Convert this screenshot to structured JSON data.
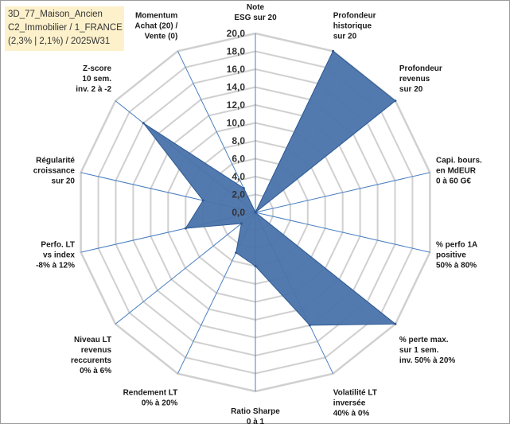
{
  "info_box": {
    "line1": "3D_77_Maison_Ancien",
    "line2": "C2_Immobilier / 1_FRANCE",
    "line3": "(2,3% | 2,1%) / 2025W31"
  },
  "colors": {
    "fill": "#4a73aa",
    "stroke": "#2e5a93",
    "grid": "#d0d0d0",
    "spoke": "#4a7fc1",
    "info_bg": "#fdf1cc"
  },
  "chart_data": {
    "type": "radar",
    "rmin": 0,
    "rmax": 20,
    "tick_step": 2,
    "tick_labels": [
      "0,0",
      "2,0",
      "4,0",
      "6,0",
      "8,0",
      "10,0",
      "12,0",
      "14,0",
      "16,0",
      "18,0",
      "20,0"
    ],
    "axes": [
      [
        "Note",
        "ESG sur 20"
      ],
      [
        "Profondeur",
        "historique",
        "sur 20"
      ],
      [
        "Profondeur",
        "revenus",
        "sur 20"
      ],
      [
        "Capi. bours.",
        "en MdEUR",
        "0 à 60 G€"
      ],
      [
        "% perfo 1A",
        "positive",
        "50% à 80%"
      ],
      [
        "% perte max.",
        "sur 1 sem.",
        "inv. 50% à 20%"
      ],
      [
        "Volatilité LT",
        "inversée",
        "40% à 0%"
      ],
      [
        "Ratio Sharpe",
        "0 à 1"
      ],
      [
        "Rendement LT",
        "0% à 20%"
      ],
      [
        "Niveau LT",
        "revenus",
        "reccurents",
        "0% à 6%"
      ],
      [
        "Perfo. LT",
        "vs index",
        "-8% à 12%"
      ],
      [
        "Régularité",
        "croissance",
        "sur 20"
      ],
      [
        "Z-score",
        "10 sem.",
        "inv. 2 à -2"
      ],
      [
        "Momentum",
        "Achat (20) /",
        "Vente (0)"
      ]
    ],
    "values": [
      0,
      20,
      20,
      0,
      0,
      20,
      14,
      6,
      5,
      2,
      8,
      6,
      16,
      3
    ]
  }
}
